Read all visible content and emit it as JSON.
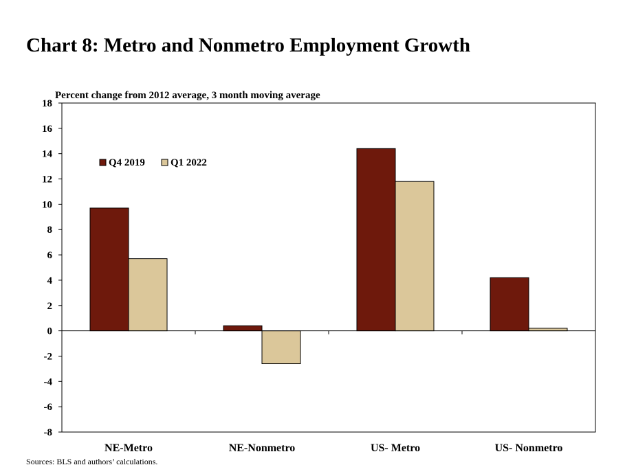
{
  "chart_data": {
    "type": "bar",
    "title": "Chart 8: Metro and Nonmetro Employment Growth",
    "ylabel": "Percent change from 2012 average, 3 month moving average",
    "xlabel": "",
    "categories": [
      "NE-Metro",
      "NE-Nonmetro",
      "US- Metro",
      "US- Nonmetro"
    ],
    "series": [
      {
        "name": "Q4 2019",
        "color": "#6e190c",
        "values": [
          9.7,
          0.4,
          14.4,
          4.2
        ]
      },
      {
        "name": "Q1 2022",
        "color": "#dbc79a",
        "values": [
          5.7,
          -2.6,
          11.8,
          0.2
        ]
      }
    ],
    "ylim": [
      -8,
      18
    ],
    "yticks": [
      18,
      16,
      14,
      12,
      10,
      8,
      6,
      4,
      2,
      0,
      -2,
      -4,
      -6,
      -8
    ],
    "grid": false,
    "legend_position": "top-left",
    "source": "Sources: BLS  and authors’ calculations."
  }
}
